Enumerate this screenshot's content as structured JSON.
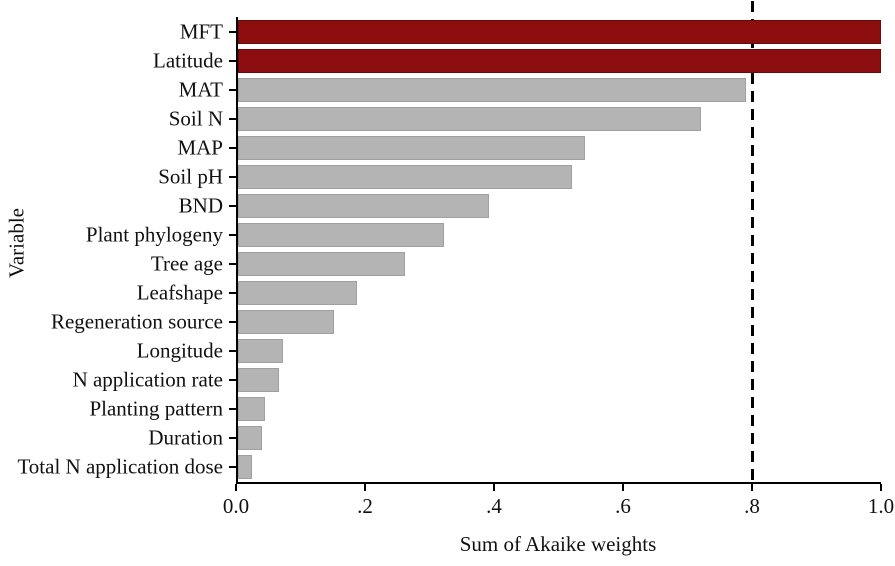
{
  "chart_data": {
    "type": "bar",
    "orientation": "horizontal",
    "title": "",
    "xlabel": "Sum of Akaike weights",
    "ylabel": "Variable",
    "xlim": [
      0,
      1.0
    ],
    "grid": false,
    "legend": false,
    "categories": [
      "MFT",
      "Latitude",
      "MAT",
      "Soil N",
      "MAP",
      "Soil pH",
      "BND",
      "Plant phylogeny",
      "Tree age",
      "Leafshape",
      "Regeneration source",
      "Longitude",
      "N application rate",
      "Planting pattern",
      "Duration",
      "Total N application dose"
    ],
    "values": [
      1.0,
      1.0,
      0.79,
      0.72,
      0.54,
      0.52,
      0.39,
      0.32,
      0.26,
      0.185,
      0.15,
      0.07,
      0.063,
      0.042,
      0.037,
      0.022
    ],
    "bar_colors": [
      "#8B0D0D",
      "#8B0D0D",
      "#B4B4B4",
      "#B4B4B4",
      "#B4B4B4",
      "#B4B4B4",
      "#B4B4B4",
      "#B4B4B4",
      "#B4B4B4",
      "#B4B4B4",
      "#B4B4B4",
      "#B4B4B4",
      "#B4B4B4",
      "#B4B4B4",
      "#B4B4B4",
      "#B4B4B4"
    ],
    "xticks": [
      {
        "value": 0.0,
        "label": "0.0"
      },
      {
        "value": 0.2,
        "label": ".2"
      },
      {
        "value": 0.4,
        "label": ".4"
      },
      {
        "value": 0.6,
        "label": ".6"
      },
      {
        "value": 0.8,
        "label": ".8"
      },
      {
        "value": 1.0,
        "label": "1.0"
      }
    ],
    "reference_line": {
      "value": 0.8,
      "style": "dashed",
      "color": "#000000"
    },
    "colors": {
      "highlight": "#8B0D0D",
      "highlight_border": "#6B0A0A",
      "default": "#B4B4B4",
      "default_border": "#A0A0A0",
      "axis": "#000000",
      "background": "#FFFFFF"
    }
  }
}
